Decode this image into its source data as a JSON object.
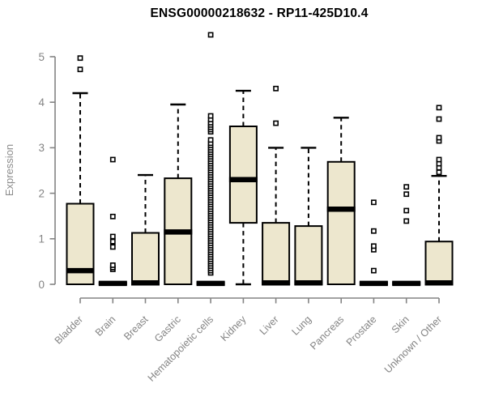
{
  "chart_data": {
    "type": "boxplot",
    "title": "ENSG00000218632 - RP11-425D10.4",
    "xlabel": "",
    "ylabel": "Expression",
    "ylim": [
      0,
      5
    ],
    "yticks": [
      0,
      1,
      2,
      3,
      4,
      5
    ],
    "grid": false,
    "legend": false,
    "categories": [
      "Bladder",
      "Brain",
      "Breast",
      "Gastric",
      "Hematopoietic cells",
      "Kidney",
      "Liver",
      "Lung",
      "Pancreas",
      "Prostate",
      "Skin",
      "Unknown / Other"
    ],
    "series": [
      {
        "label": "Bladder",
        "whisker_low": 0,
        "q1": 0,
        "median": 0.3,
        "q3": 1.77,
        "whisker_high": 4.2,
        "outliers": [
          4.72,
          4.97
        ]
      },
      {
        "label": "Brain",
        "whisker_low": 0,
        "q1": 0,
        "median": 0.02,
        "q3": 0.04,
        "whisker_high": 0.04,
        "outliers": [
          0.33,
          0.37,
          0.42,
          0.82,
          0.94,
          1.05,
          1.49,
          2.74
        ]
      },
      {
        "label": "Breast",
        "whisker_low": 0,
        "q1": 0,
        "median": 0.03,
        "q3": 1.13,
        "whisker_high": 2.4,
        "outliers": []
      },
      {
        "label": "Gastric",
        "whisker_low": 0,
        "q1": 0,
        "median": 1.15,
        "q3": 2.33,
        "whisker_high": 3.95,
        "outliers": []
      },
      {
        "label": "Hematopoietic cells",
        "whisker_low": 0,
        "q1": 0,
        "median": 0.02,
        "q3": 0.04,
        "whisker_high": 0.04,
        "outliers": [
          0.25,
          0.3,
          0.35,
          0.4,
          0.45,
          0.5,
          0.55,
          0.6,
          0.65,
          0.7,
          0.75,
          0.8,
          0.85,
          0.9,
          0.95,
          1.0,
          1.05,
          1.1,
          1.15,
          1.2,
          1.25,
          1.3,
          1.35,
          1.4,
          1.45,
          1.5,
          1.55,
          1.6,
          1.65,
          1.7,
          1.75,
          1.8,
          1.85,
          1.9,
          1.95,
          2.0,
          2.05,
          2.1,
          2.15,
          2.2,
          2.25,
          2.3,
          2.35,
          2.4,
          2.45,
          2.5,
          2.55,
          2.6,
          2.65,
          2.7,
          2.75,
          2.8,
          2.85,
          2.9,
          2.95,
          3.0,
          3.05,
          3.1,
          3.17,
          3.35,
          3.4,
          3.45,
          3.5,
          3.55,
          3.62,
          3.7,
          5.48
        ]
      },
      {
        "label": "Kidney",
        "whisker_low": 0,
        "q1": 1.35,
        "median": 2.3,
        "q3": 3.47,
        "whisker_high": 4.25,
        "outliers": []
      },
      {
        "label": "Liver",
        "whisker_low": 0,
        "q1": 0,
        "median": 0.03,
        "q3": 1.35,
        "whisker_high": 3.0,
        "outliers": [
          3.54,
          4.3
        ]
      },
      {
        "label": "Lung",
        "whisker_low": 0,
        "q1": 0,
        "median": 0.03,
        "q3": 1.28,
        "whisker_high": 3.0,
        "outliers": []
      },
      {
        "label": "Pancreas",
        "whisker_low": 0,
        "q1": 0,
        "median": 1.65,
        "q3": 2.69,
        "whisker_high": 3.66,
        "outliers": []
      },
      {
        "label": "Prostate",
        "whisker_low": 0,
        "q1": 0,
        "median": 0.02,
        "q3": 0.04,
        "whisker_high": 0.04,
        "outliers": [
          0.3,
          0.76,
          0.84,
          1.17,
          1.8
        ]
      },
      {
        "label": "Skin",
        "whisker_low": 0,
        "q1": 0,
        "median": 0.02,
        "q3": 0.04,
        "whisker_high": 0.04,
        "outliers": [
          1.39,
          1.62,
          1.98,
          2.14
        ]
      },
      {
        "label": "Unknown / Other",
        "whisker_low": 0,
        "q1": 0,
        "median": 0.03,
        "q3": 0.94,
        "whisker_high": 2.38,
        "outliers": [
          2.46,
          2.56,
          2.65,
          2.74,
          3.15,
          3.22,
          3.63,
          3.88
        ]
      }
    ],
    "colors": {
      "box_fill": "#EDE7CE",
      "box_stroke": "#000000",
      "median": "#000000",
      "whisker": "#000000",
      "outlier_stroke": "#000000",
      "outlier_fill": "#ffffff",
      "axis": "#848484",
      "tick_label": "#848484",
      "axis_label": "#8c8c8c",
      "title": "#000000",
      "background": "#ffffff"
    }
  }
}
